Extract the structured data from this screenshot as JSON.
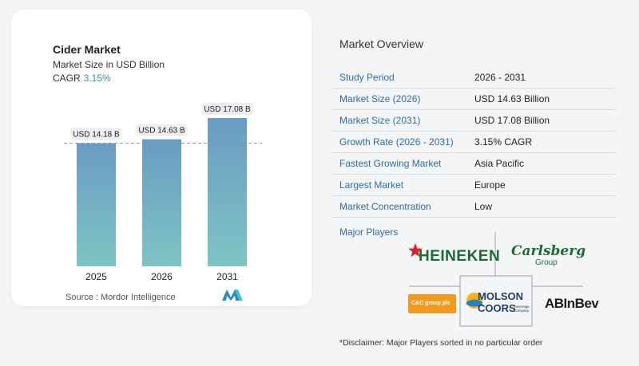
{
  "chart": {
    "title": "Cider Market",
    "subtitle": "Market Size in USD Billion",
    "cagr_label": "CAGR",
    "cagr_value": "3.15%",
    "source": "Source :  Mordor Intelligence"
  },
  "chart_data": {
    "type": "bar",
    "categories": [
      "2025",
      "2026",
      "2031"
    ],
    "values": [
      14.18,
      14.63,
      17.08
    ],
    "value_labels": [
      "USD 14.18 B",
      "USD 14.63 B",
      "USD 17.08 B"
    ],
    "title": "Cider Market",
    "subtitle": "Market Size in USD Billion",
    "xlabel": "",
    "ylabel": "",
    "reference_line": 14.18,
    "grid": false,
    "colors": {
      "bar_top": "#6a9cc3",
      "bar_bottom": "#7ec4c4",
      "label_bg": "#eceef1"
    }
  },
  "overview": {
    "title": "Market Overview",
    "rows": [
      {
        "label": "Study Period",
        "value": "2026 - 2031"
      },
      {
        "label": "Market Size (2026)",
        "value": "USD 14.63 Billion"
      },
      {
        "label": "Market Size (2031)",
        "value": "USD 17.08 Billion"
      },
      {
        "label": "Growth Rate (2026 - 2031)",
        "value": "3.15% CAGR"
      },
      {
        "label": "Fastest Growing Market",
        "value": "Asia Pacific"
      },
      {
        "label": "Largest Market",
        "value": "Europe"
      },
      {
        "label": "Market Concentration",
        "value": "Low"
      }
    ],
    "players_title": "Major Players",
    "players": {
      "heineken": "HEINEKEN",
      "carlsberg": "Carlsberg",
      "carlsberg_sub": "Group",
      "cc_group": "C&C group plc",
      "molson_1": "MOLSON",
      "molson_2": "COORS",
      "molson_sub": "beverage company",
      "abinbev": "ABInBev"
    },
    "disclaimer": "*Disclaimer: Major Players sorted in no particular order"
  }
}
